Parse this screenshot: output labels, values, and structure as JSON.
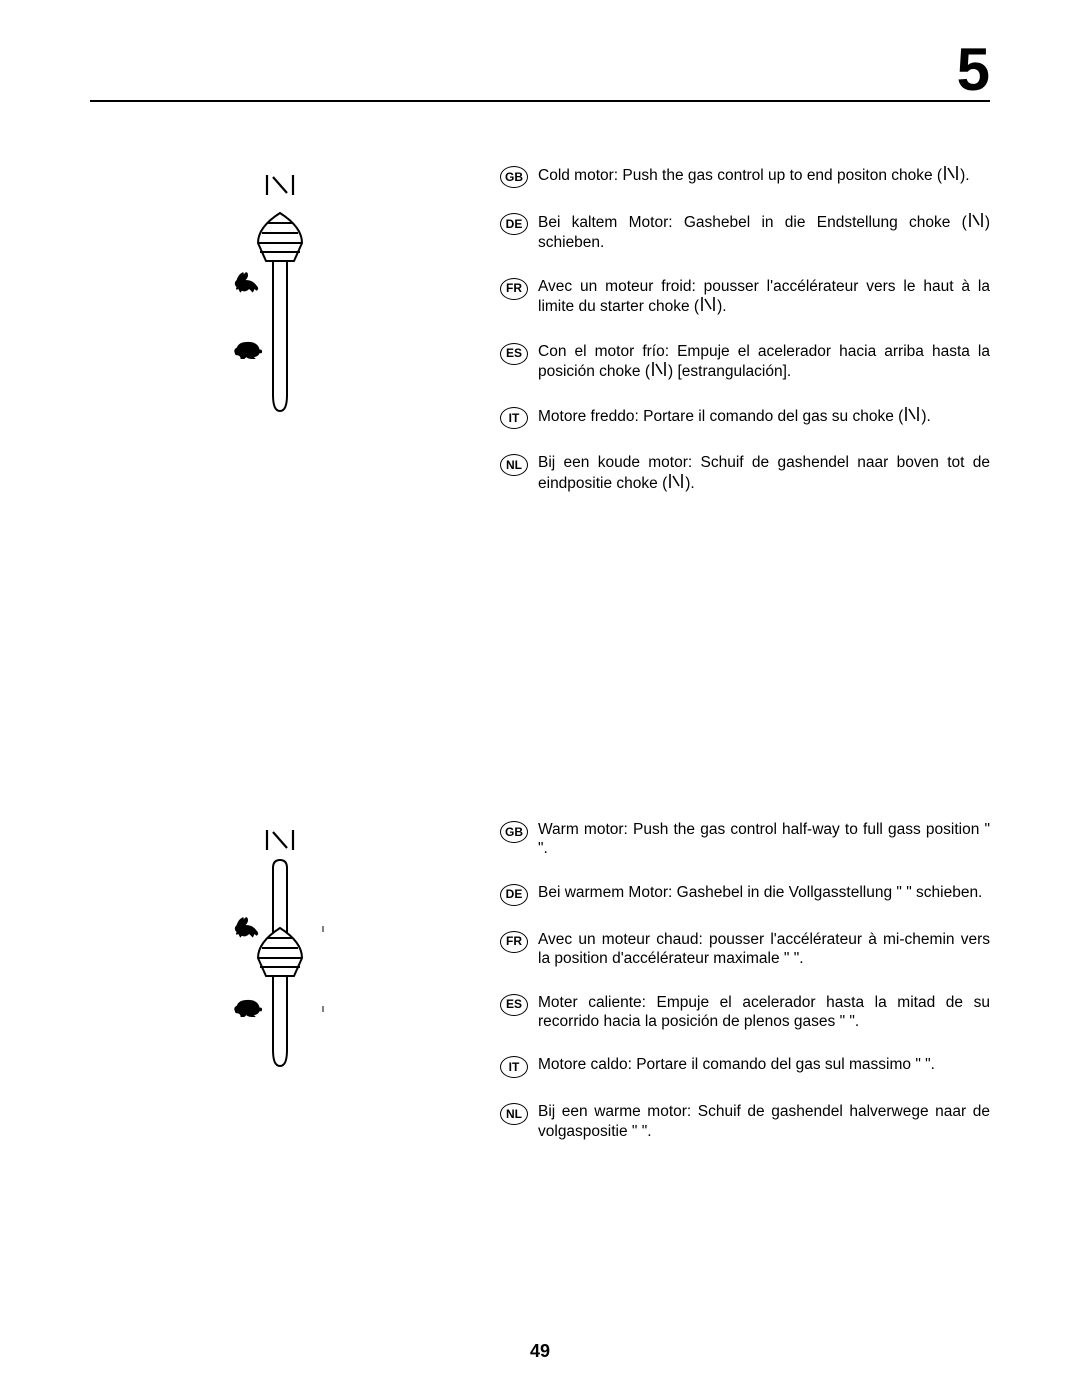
{
  "chapterNumber": "5",
  "pageNumber": "49",
  "illustration": {
    "stroke": "#000000",
    "fill": "#ffffff",
    "rabbitFill": "#000000",
    "turtleFill": "#000000"
  },
  "chokeIconStroke": "#000000",
  "section1": {
    "entries": [
      {
        "lang": "GB",
        "textBefore": "Cold motor: Push the gas control up to end positon choke (",
        "hasIcon": true,
        "textAfter": ")."
      },
      {
        "lang": "DE",
        "textBefore": "Bei kaltem Motor: Gashebel in die Endstellung choke (",
        "hasIcon": true,
        "textAfter": ") schieben."
      },
      {
        "lang": "FR",
        "textBefore": "Avec un moteur froid: pousser l'accélérateur vers le haut à la limite du starter choke (",
        "hasIcon": true,
        "textAfter": ")."
      },
      {
        "lang": "ES",
        "textBefore": "Con el motor frío: Empuje el acelerador hacia arriba hasta la posición choke (",
        "hasIcon": true,
        "textAfter": ") [estrangulación]."
      },
      {
        "lang": "IT",
        "textBefore": "Motore freddo: Portare il comando del gas su choke (",
        "hasIcon": true,
        "textAfter": ")."
      },
      {
        "lang": "NL",
        "textBefore": "Bij een koude motor: Schuif de gashendel naar boven tot de    eindpositie choke (",
        "hasIcon": true,
        "textAfter": ")."
      }
    ]
  },
  "section2": {
    "entries": [
      {
        "lang": "GB",
        "textBefore": "Warm motor:  Push the gas control half-way to full gass position \"    \".",
        "hasIcon": false,
        "textAfter": ""
      },
      {
        "lang": "DE",
        "textBefore": "Bei warmem Motor: Gashebel in die Vollgasstellung \"    \" schieben.",
        "hasIcon": false,
        "textAfter": ""
      },
      {
        "lang": "FR",
        "textBefore": "Avec un moteur chaud: pousser l'accélérateur à mi-chemin vers la position d'accélérateur maximale \"    \".",
        "hasIcon": false,
        "textAfter": ""
      },
      {
        "lang": "ES",
        "textBefore": "Moter caliente:  Empuje el acelerador hasta la mitad de su recorrido hacia la posición de plenos gases \"    \".",
        "hasIcon": false,
        "textAfter": ""
      },
      {
        "lang": "IT",
        "textBefore": "Motore caldo:  Portare il comando del gas sul massimo \"    \".",
        "hasIcon": false,
        "textAfter": ""
      },
      {
        "lang": "NL",
        "textBefore": "Bij een warme motor:  Schuif de gashendel halverwege naar de volgaspositie \"    \".",
        "hasIcon": false,
        "textAfter": ""
      }
    ]
  }
}
